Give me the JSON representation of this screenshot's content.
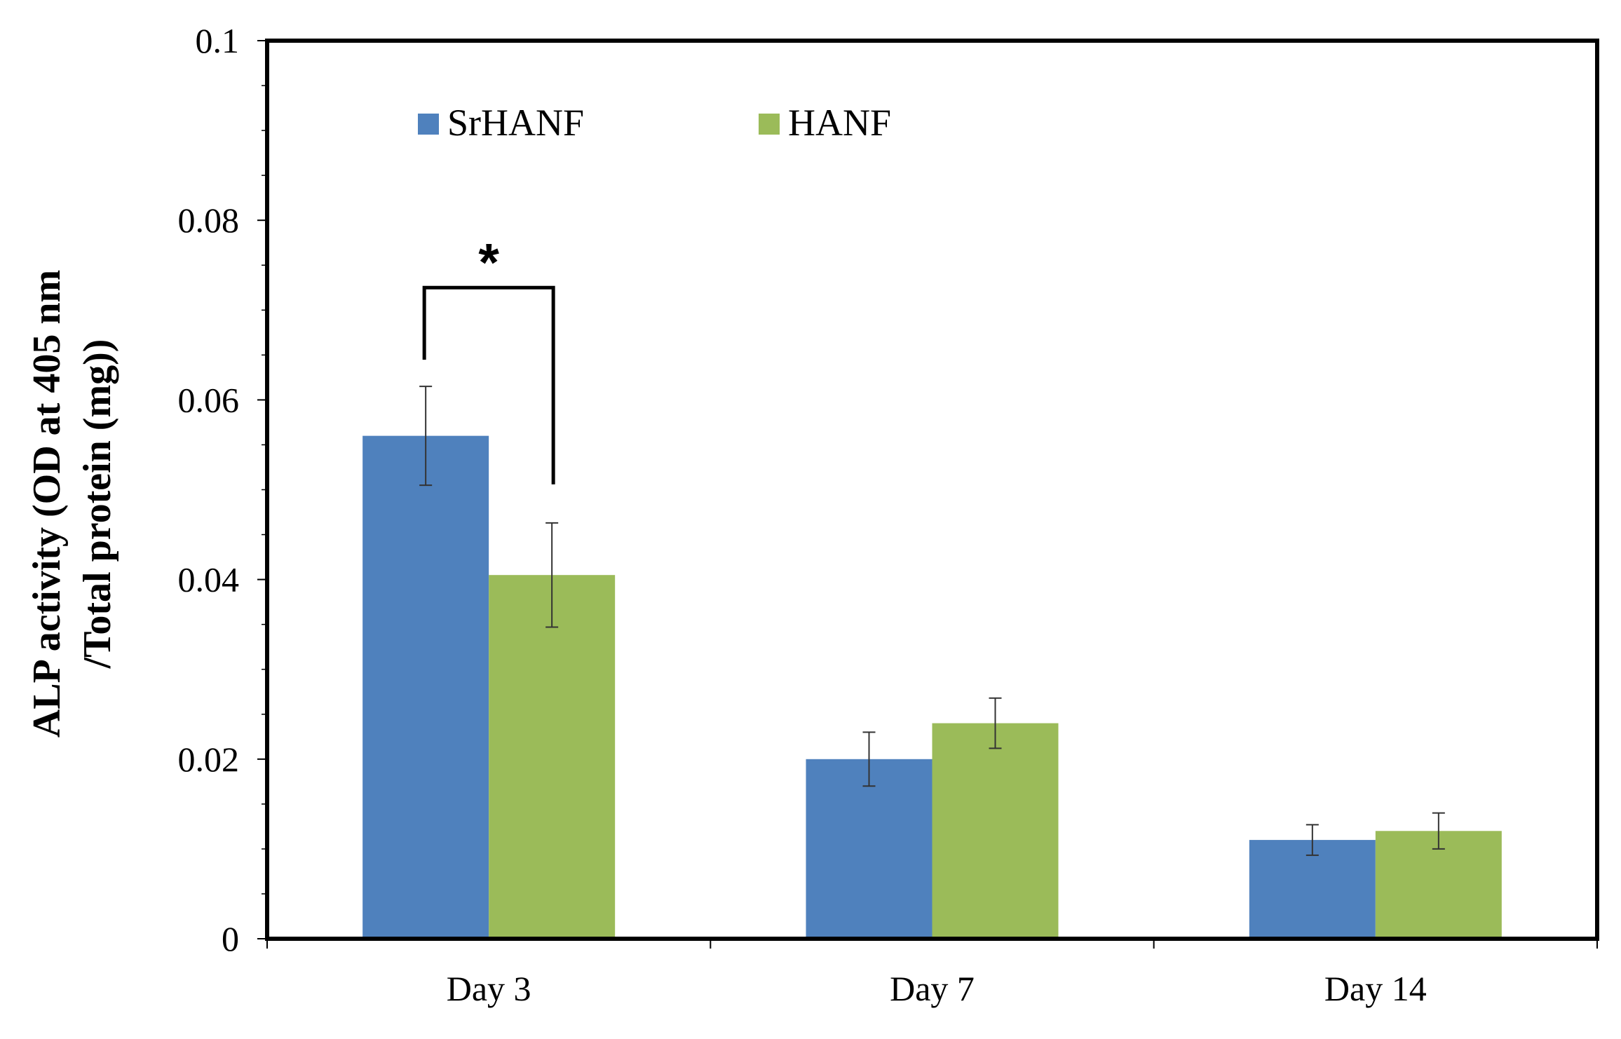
{
  "chart_data": {
    "type": "bar",
    "title": "",
    "xlabel": "",
    "ylabel": [
      "ALP activity (OD at 405 nm",
      "/Total protein (mg))"
    ],
    "categories": [
      "Day 3",
      "Day 7",
      "Day 14"
    ],
    "series": [
      {
        "name": "SrHANF",
        "color": "#4F81BD",
        "values": [
          0.056,
          0.02,
          0.011
        ],
        "errors": [
          0.0055,
          0.003,
          0.0017
        ]
      },
      {
        "name": "HANF",
        "color": "#9BBB59",
        "values": [
          0.0405,
          0.024,
          0.012
        ],
        "errors": [
          0.0058,
          0.0028,
          0.002
        ]
      }
    ],
    "ylim": [
      0,
      0.1
    ],
    "yticks": [
      0,
      0.02,
      0.04,
      0.06,
      0.08,
      0.1
    ],
    "ytick_labels": [
      "0",
      "0.02",
      "0.04",
      "0.06",
      "0.08",
      "0.1"
    ],
    "grid": false,
    "legend_position": "top-left",
    "annotations": [
      {
        "text": "*",
        "category": "Day 3",
        "between": [
          "SrHANF",
          "HANF"
        ],
        "level": 0.0725
      }
    ]
  }
}
